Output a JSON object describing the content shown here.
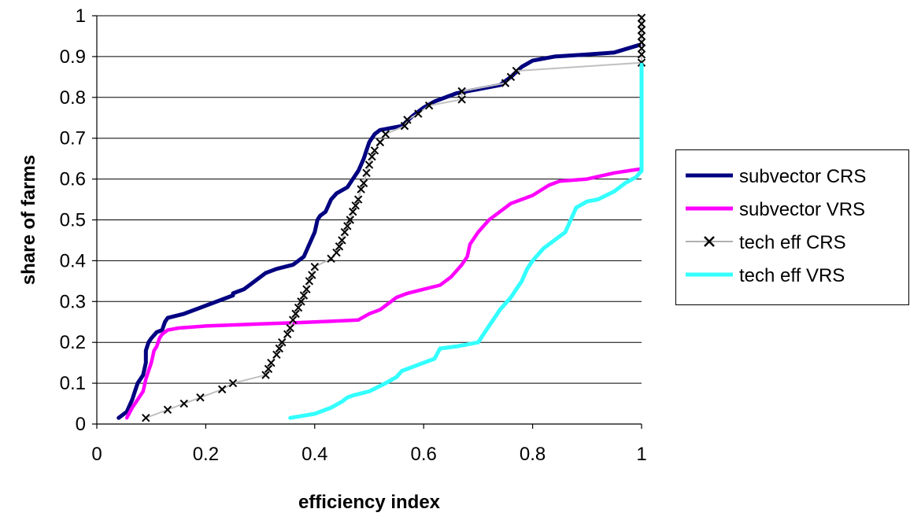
{
  "chart_data": {
    "type": "line",
    "title": "",
    "xlabel": "efficiency index",
    "ylabel": "share of farms",
    "xlim": [
      0,
      1
    ],
    "ylim": [
      0,
      1
    ],
    "xticks": [
      "0",
      "0.2",
      "0.4",
      "0.6",
      "0.8",
      "1"
    ],
    "yticks": [
      "0",
      "0.1",
      "0.2",
      "0.3",
      "0.4",
      "0.5",
      "0.6",
      "0.7",
      "0.8",
      "0.9",
      "1"
    ],
    "grid": "horizontal",
    "legend_position": "right",
    "series": [
      {
        "name": "subvector CRS",
        "color": "#000080",
        "marker": "none",
        "x": [
          0.04,
          0.055,
          0.065,
          0.07,
          0.075,
          0.085,
          0.09,
          0.09,
          0.095,
          0.1,
          0.11,
          0.12,
          0.125,
          0.13,
          0.16,
          0.2,
          0.24,
          0.25,
          0.25,
          0.27,
          0.29,
          0.31,
          0.33,
          0.36,
          0.38,
          0.39,
          0.4,
          0.405,
          0.41,
          0.42,
          0.43,
          0.44,
          0.46,
          0.47,
          0.48,
          0.49,
          0.495,
          0.5,
          0.51,
          0.52,
          0.56,
          0.58,
          0.6,
          0.62,
          0.66,
          0.7,
          0.74,
          0.75,
          0.76,
          0.78,
          0.8,
          0.84,
          0.9,
          0.95,
          1.0
        ],
        "y": [
          0.015,
          0.03,
          0.06,
          0.08,
          0.1,
          0.12,
          0.15,
          0.18,
          0.2,
          0.21,
          0.225,
          0.23,
          0.25,
          0.26,
          0.27,
          0.29,
          0.31,
          0.315,
          0.32,
          0.33,
          0.35,
          0.37,
          0.38,
          0.39,
          0.41,
          0.44,
          0.47,
          0.5,
          0.51,
          0.52,
          0.55,
          0.565,
          0.58,
          0.6,
          0.62,
          0.65,
          0.67,
          0.69,
          0.71,
          0.72,
          0.73,
          0.755,
          0.775,
          0.79,
          0.81,
          0.82,
          0.83,
          0.84,
          0.85,
          0.875,
          0.89,
          0.9,
          0.905,
          0.91,
          0.93
        ]
      },
      {
        "name": "subvector VRS",
        "color": "#ff00ff",
        "marker": "none",
        "x": [
          0.055,
          0.065,
          0.075,
          0.085,
          0.09,
          0.095,
          0.1,
          0.105,
          0.11,
          0.115,
          0.12,
          0.13,
          0.15,
          0.2,
          0.3,
          0.4,
          0.45,
          0.48,
          0.5,
          0.52,
          0.54,
          0.55,
          0.57,
          0.6,
          0.63,
          0.65,
          0.67,
          0.68,
          0.685,
          0.7,
          0.72,
          0.74,
          0.76,
          0.8,
          0.83,
          0.85,
          0.9,
          0.95,
          1.0
        ],
        "y": [
          0.015,
          0.04,
          0.06,
          0.08,
          0.11,
          0.13,
          0.15,
          0.18,
          0.19,
          0.21,
          0.22,
          0.23,
          0.235,
          0.24,
          0.245,
          0.25,
          0.253,
          0.255,
          0.27,
          0.28,
          0.3,
          0.31,
          0.32,
          0.33,
          0.34,
          0.36,
          0.39,
          0.41,
          0.44,
          0.47,
          0.5,
          0.52,
          0.54,
          0.56,
          0.585,
          0.595,
          0.6,
          0.615,
          0.625
        ]
      },
      {
        "name": "tech eff CRS",
        "color": "#c0c0c0",
        "marker": "x",
        "x": [
          0.09,
          0.13,
          0.16,
          0.19,
          0.23,
          0.25,
          0.31,
          0.315,
          0.32,
          0.33,
          0.335,
          0.34,
          0.35,
          0.355,
          0.36,
          0.365,
          0.37,
          0.375,
          0.38,
          0.385,
          0.39,
          0.395,
          0.4,
          0.43,
          0.44,
          0.445,
          0.45,
          0.455,
          0.46,
          0.465,
          0.47,
          0.475,
          0.48,
          0.485,
          0.49,
          0.495,
          0.5,
          0.505,
          0.51,
          0.52,
          0.53,
          0.565,
          0.57,
          0.59,
          0.61,
          0.67,
          0.67,
          0.75,
          0.76,
          0.77,
          1.0,
          1.0,
          1.0,
          1.0,
          1.0,
          1.0,
          1.0,
          1.0
        ],
        "y": [
          0.015,
          0.035,
          0.05,
          0.065,
          0.085,
          0.1,
          0.12,
          0.135,
          0.15,
          0.17,
          0.185,
          0.2,
          0.22,
          0.235,
          0.255,
          0.27,
          0.285,
          0.3,
          0.315,
          0.33,
          0.35,
          0.365,
          0.385,
          0.405,
          0.42,
          0.435,
          0.45,
          0.47,
          0.485,
          0.5,
          0.52,
          0.535,
          0.55,
          0.575,
          0.59,
          0.615,
          0.635,
          0.655,
          0.67,
          0.69,
          0.71,
          0.73,
          0.745,
          0.76,
          0.78,
          0.795,
          0.815,
          0.835,
          0.85,
          0.865,
          0.885,
          0.905,
          0.92,
          0.935,
          0.95,
          0.965,
          0.98,
          0.995
        ]
      },
      {
        "name": "tech eff VRS",
        "color": "#33ffff",
        "marker": "none",
        "x": [
          0.355,
          0.4,
          0.43,
          0.45,
          0.46,
          0.47,
          0.5,
          0.53,
          0.55,
          0.56,
          0.58,
          0.6,
          0.62,
          0.63,
          0.66,
          0.7,
          0.71,
          0.72,
          0.73,
          0.74,
          0.76,
          0.77,
          0.78,
          0.79,
          0.8,
          0.82,
          0.84,
          0.86,
          0.87,
          0.88,
          0.9,
          0.92,
          0.95,
          0.97,
          0.99,
          1.0,
          1.0,
          1.0
        ],
        "y": [
          0.015,
          0.025,
          0.04,
          0.055,
          0.065,
          0.07,
          0.08,
          0.1,
          0.115,
          0.13,
          0.14,
          0.15,
          0.16,
          0.185,
          0.19,
          0.2,
          0.22,
          0.24,
          0.26,
          0.28,
          0.31,
          0.33,
          0.35,
          0.38,
          0.4,
          0.43,
          0.45,
          0.47,
          0.5,
          0.53,
          0.545,
          0.55,
          0.57,
          0.59,
          0.605,
          0.62,
          0.7,
          0.88
        ]
      }
    ]
  }
}
